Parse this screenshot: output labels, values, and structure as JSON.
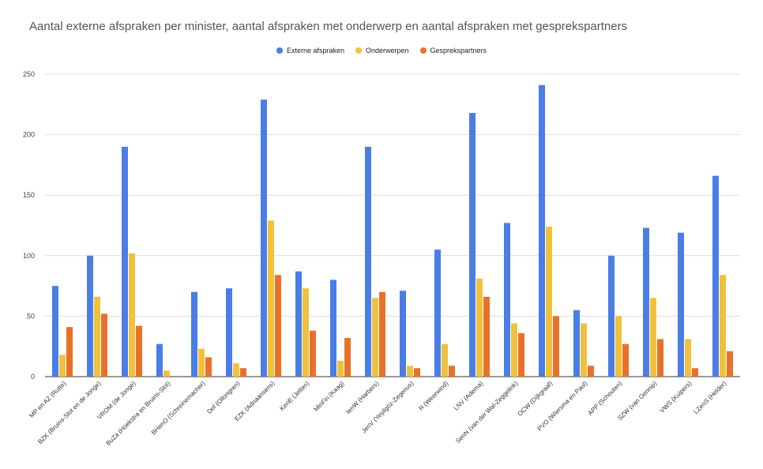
{
  "chart_data": {
    "type": "bar",
    "title": "Aantal externe afspraken per minister, aantal afspraken met onderwerp en aantal afspraken met gesprekspartners",
    "xlabel": "",
    "ylabel": "",
    "ylim": [
      0,
      250
    ],
    "yticks": [
      0,
      50,
      100,
      150,
      200,
      250
    ],
    "grid": true,
    "legend_position": "top",
    "categories": [
      "MP en AZ (Rutte)",
      "BZK (Bruins-Slot en de Jonge)",
      "VROM (de Jonge)",
      "BuZa (Hoekstra en Bruins-Slot)",
      "BHenO (Schreinemacher)",
      "Def (Ollongren)",
      "EZK (Adriaansens)",
      "KenE (Jetten)",
      "MinFin (Kaag)",
      "IenW (Harbers)",
      "JenV (Yeşilgöz-Zegerius)",
      "R (Weerwind)",
      "LNV (Adema)",
      "SenN (van der Wal-Zeggelink)",
      "OCW (Dijkgraaf)",
      "PVO (Wiersma en Paul)",
      "APP (Schouten)",
      "SZW (van Gennip)",
      "VWS (Kuipers)",
      "LZenS (Helder)"
    ],
    "series": [
      {
        "name": "Externe afspraken",
        "color": "#4a7de6",
        "values": [
          75,
          100,
          190,
          27,
          70,
          73,
          229,
          87,
          80,
          190,
          71,
          105,
          218,
          127,
          241,
          55,
          100,
          123,
          119,
          166
        ]
      },
      {
        "name": "Onderwerpen",
        "color": "#f0c13c",
        "values": [
          18,
          66,
          102,
          5,
          23,
          11,
          129,
          73,
          13,
          65,
          9,
          27,
          81,
          44,
          124,
          44,
          50,
          65,
          31,
          84
        ]
      },
      {
        "name": "Gesprekspartners",
        "color": "#e8712a",
        "values": [
          41,
          52,
          42,
          0,
          16,
          7,
          84,
          38,
          32,
          70,
          7,
          9,
          66,
          36,
          50,
          9,
          27,
          31,
          7,
          21
        ]
      }
    ]
  }
}
